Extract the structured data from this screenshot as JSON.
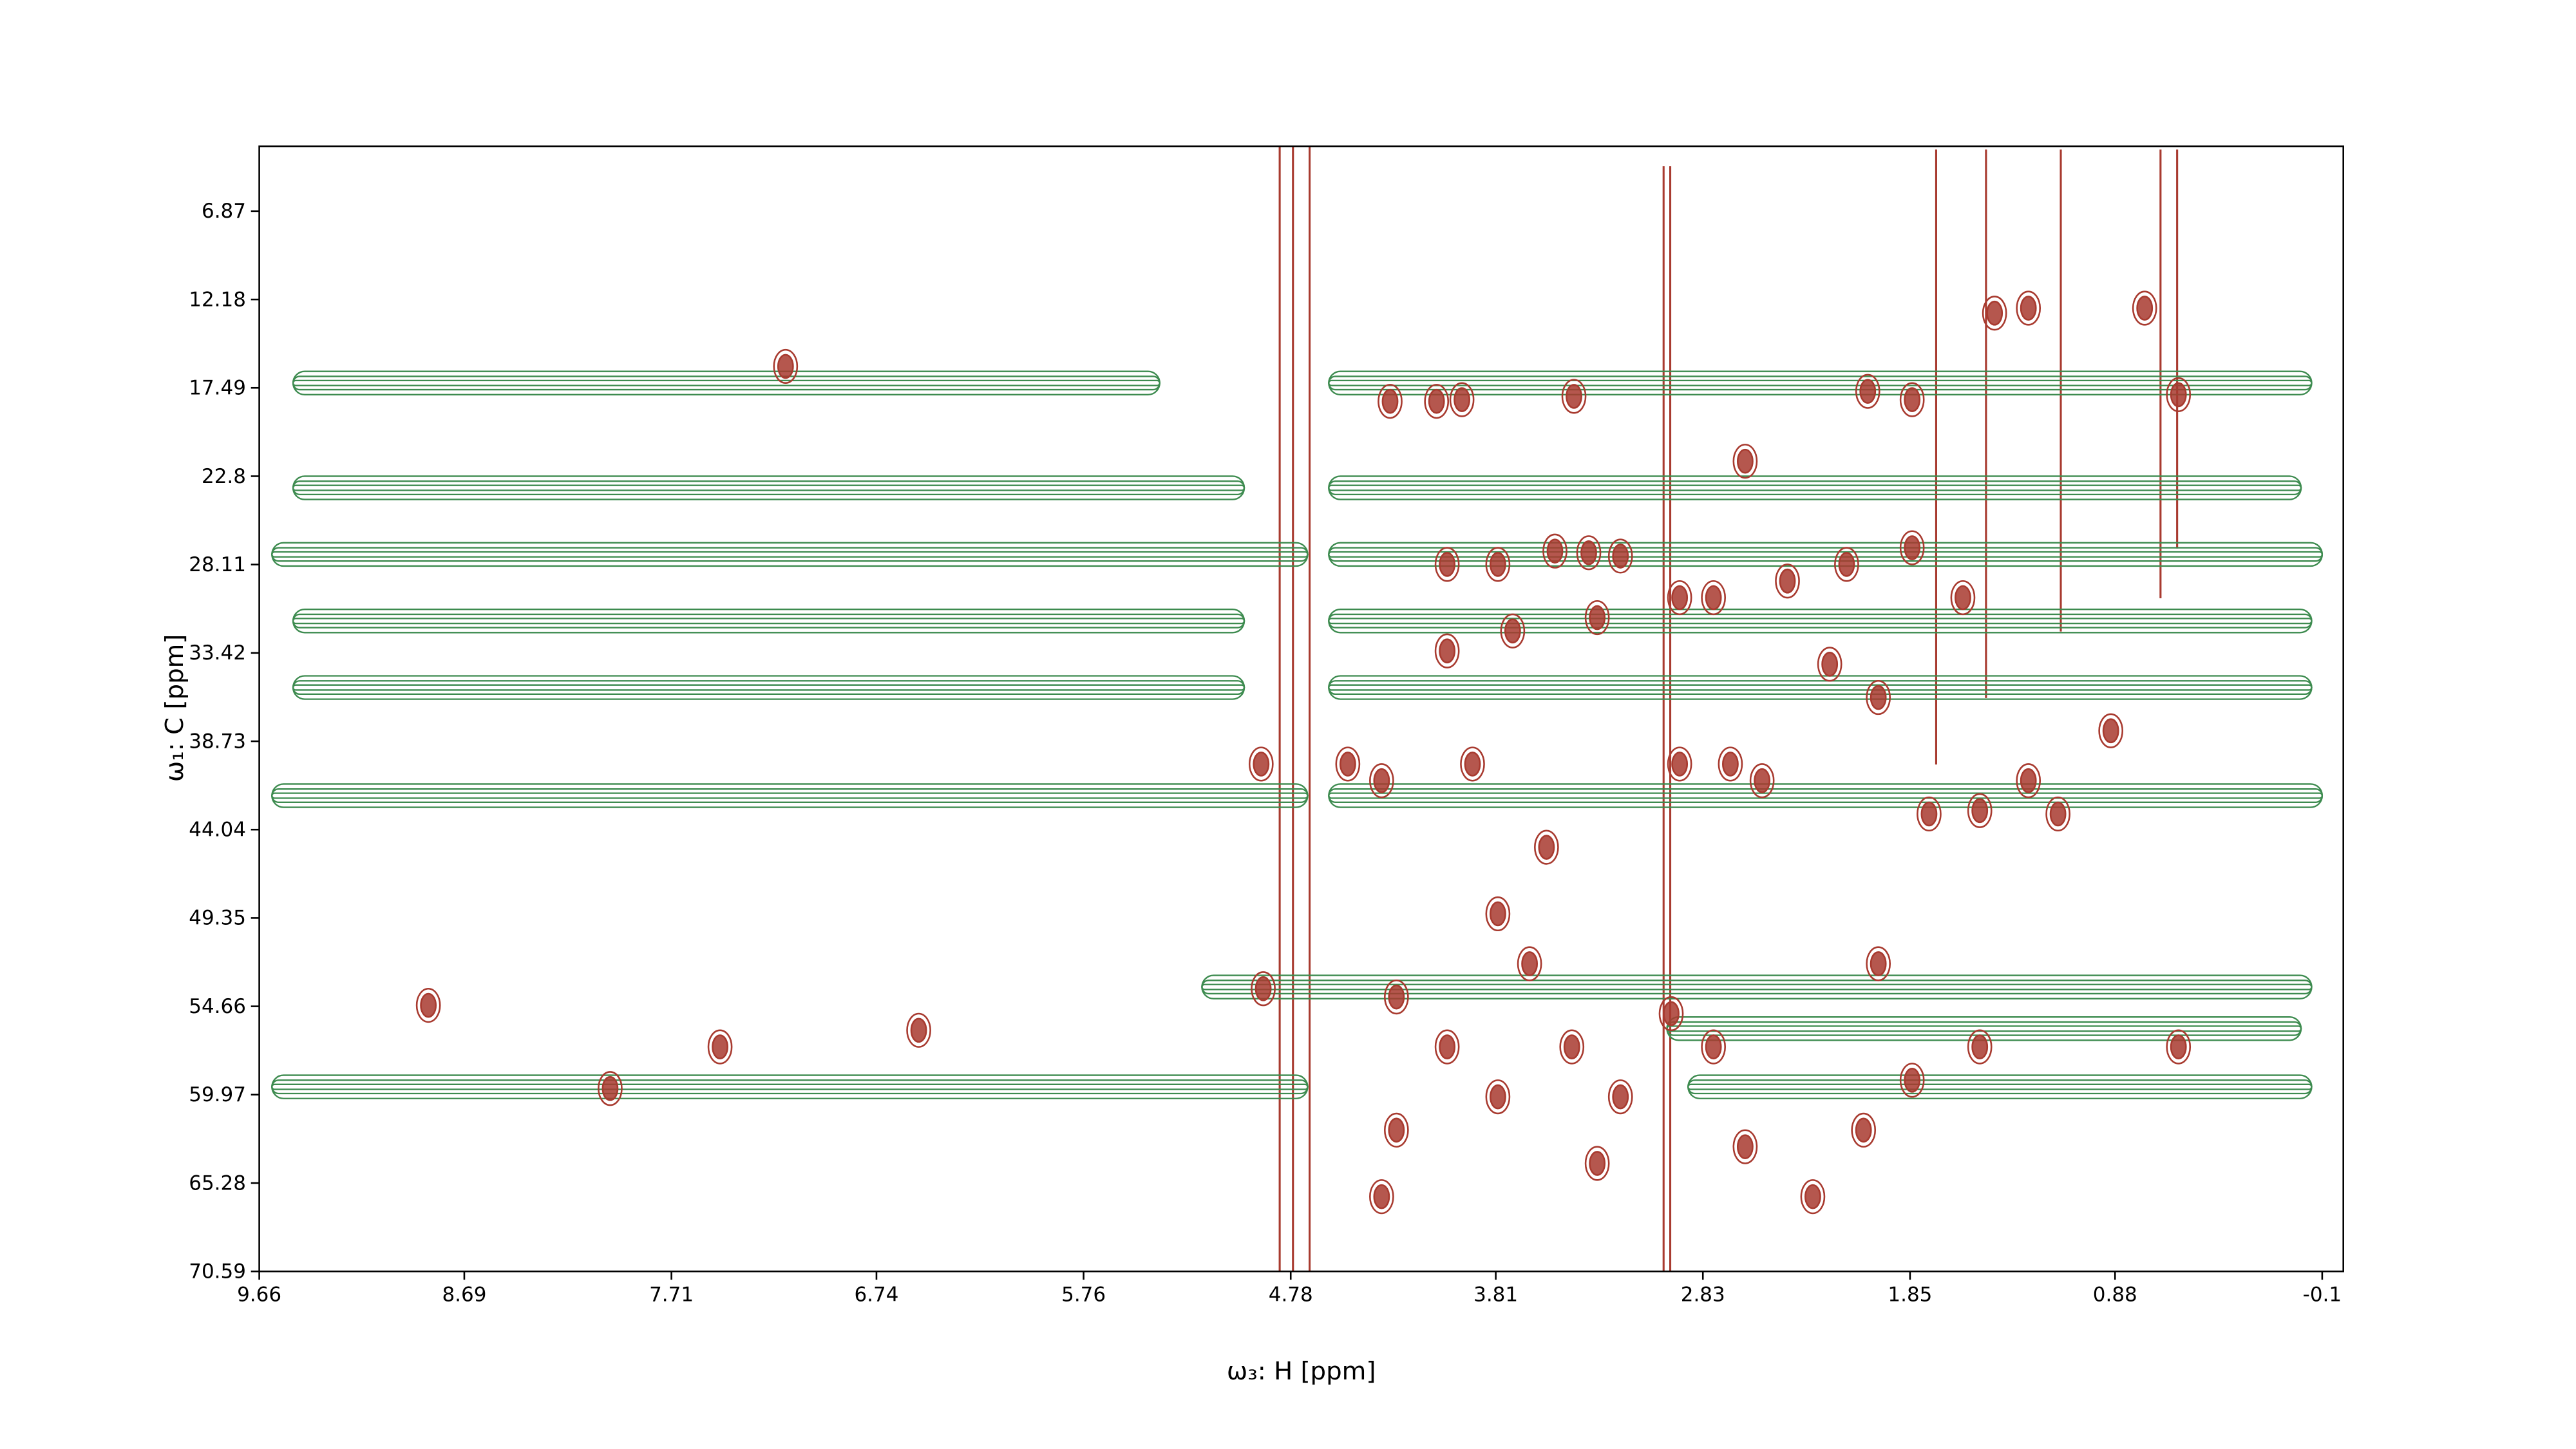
{
  "chart_data": {
    "type": "contour",
    "xlabel": "ω₃: H [ppm]",
    "ylabel": "ω₁: C [ppm]",
    "xlim": [
      9.66,
      -0.2
    ],
    "ylim": [
      70.59,
      2.97
    ],
    "xticks": [
      9.66,
      8.69,
      7.71,
      6.74,
      5.76,
      4.78,
      3.81,
      2.83,
      1.85,
      0.88,
      -0.1
    ],
    "yticks": [
      6.87,
      12.18,
      17.49,
      22.8,
      28.11,
      33.42,
      38.73,
      44.04,
      49.35,
      54.66,
      59.97,
      65.28,
      70.59
    ],
    "streaks": {
      "color": "#3d8b4f",
      "y": [
        17.2,
        17.2,
        23.5,
        23.5,
        27.5,
        27.5,
        31.5,
        31.5,
        35.5,
        35.5,
        42.0,
        42.0,
        53.5,
        56.0,
        59.5,
        59.5
      ],
      "x_start": [
        9.5,
        4.6,
        9.5,
        4.6,
        9.6,
        4.6,
        9.5,
        4.6,
        9.5,
        4.6,
        9.6,
        4.6,
        5.2,
        3.0,
        9.6,
        2.9
      ],
      "x_end": [
        5.4,
        -0.05,
        5.0,
        0.0,
        4.7,
        -0.1,
        5.0,
        -0.05,
        5.0,
        -0.05,
        4.7,
        -0.1,
        -0.05,
        0.0,
        4.7,
        -0.05
      ]
    },
    "peaks": {
      "color": "#a83a2f",
      "x": [
        4.31,
        4.09,
        3.97,
        3.44,
        2.63,
        2.05,
        1.84,
        1.45,
        1.29,
        0.74,
        0.58,
        4.04,
        3.8,
        3.53,
        3.37,
        3.22,
        2.94,
        2.78,
        2.43,
        2.15,
        1.84,
        1.6,
        2.23,
        2.0,
        4.04,
        3.73,
        3.33,
        2.94,
        2.7,
        2.55,
        1.76,
        1.52,
        1.15,
        0.9,
        4.51,
        4.35,
        3.92,
        3.57,
        3.8,
        3.65,
        4.28,
        4.04,
        3.8,
        4.28,
        4.35,
        3.45,
        3.22,
        2.98,
        2.78,
        2.63,
        2.31,
        2.07,
        1.84,
        1.52,
        2.0,
        0.58,
        4.92,
        4.91,
        3.33,
        1.29,
        7.17,
        6.54,
        8.0,
        7.48,
        8.86
      ],
      "y": [
        18.3,
        18.3,
        18.2,
        18.0,
        21.9,
        17.7,
        18.2,
        13.0,
        12.7,
        12.7,
        17.9,
        28.1,
        28.1,
        27.3,
        27.4,
        27.6,
        30.1,
        30.1,
        29.1,
        28.1,
        27.1,
        30.1,
        34.1,
        36.1,
        33.3,
        32.1,
        31.3,
        40.1,
        40.1,
        41.1,
        43.1,
        42.9,
        43.1,
        38.1,
        40.1,
        41.1,
        40.1,
        45.1,
        49.1,
        52.1,
        54.1,
        57.1,
        60.1,
        62.1,
        66.1,
        57.1,
        60.1,
        55.1,
        57.1,
        63.1,
        66.1,
        62.1,
        59.1,
        57.1,
        52.1,
        57.1,
        40.1,
        53.6,
        64.1,
        41.1,
        16.2,
        56.1,
        59.6,
        57.1,
        54.6
      ]
    }
  }
}
